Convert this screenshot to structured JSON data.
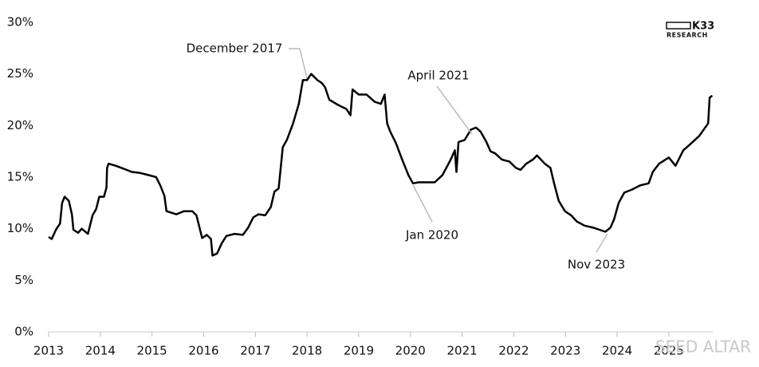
{
  "chart_data": {
    "type": "line",
    "color": "#000000",
    "x": [
      2013.0,
      2013.06,
      2013.14,
      2013.22,
      2013.26,
      2013.31,
      2013.39,
      2013.45,
      2013.48,
      2013.57,
      2013.64,
      2013.76,
      2013.85,
      2013.92,
      2013.98,
      2014.07,
      2014.12,
      2014.13,
      2014.16,
      2014.3,
      2014.46,
      2014.61,
      2014.77,
      2014.93,
      2015.08,
      2015.16,
      2015.24,
      2015.28,
      2015.47,
      2015.62,
      2015.78,
      2015.86,
      2015.97,
      2016.06,
      2016.14,
      2016.17,
      2016.26,
      2016.35,
      2016.44,
      2016.6,
      2016.76,
      2016.86,
      2016.96,
      2017.06,
      2017.19,
      2017.3,
      2017.37,
      2017.45,
      2017.53,
      2017.61,
      2017.73,
      2017.84,
      2017.92,
      2018.0,
      2018.08,
      2018.2,
      2018.29,
      2018.35,
      2018.43,
      2018.6,
      2018.76,
      2018.84,
      2018.88,
      2019.0,
      2019.15,
      2019.31,
      2019.43,
      2019.5,
      2019.55,
      2019.61,
      2019.72,
      2019.84,
      2019.96,
      2020.05,
      2020.16,
      2020.31,
      2020.47,
      2020.62,
      2020.78,
      2020.86,
      2020.89,
      2020.93,
      2021.05,
      2021.17,
      2021.27,
      2021.36,
      2021.47,
      2021.55,
      2021.64,
      2021.77,
      2021.92,
      2022.04,
      2022.13,
      2022.24,
      2022.37,
      2022.45,
      2022.6,
      2022.71,
      2022.78,
      2022.87,
      2022.99,
      2023.11,
      2023.22,
      2023.37,
      2023.54,
      2023.66,
      2023.77,
      2023.87,
      2023.94,
      2024.03,
      2024.14,
      2024.29,
      2024.45,
      2024.61,
      2024.69,
      2024.81,
      2025.0,
      2025.13,
      2025.28,
      2025.44,
      2025.59,
      2025.76,
      2025.79,
      2025.84
    ],
    "values": [
      9.2,
      9.0,
      9.9,
      10.5,
      12.5,
      13.1,
      12.7,
      11.4,
      9.9,
      9.6,
      10.0,
      9.5,
      11.3,
      11.9,
      13.1,
      13.1,
      14.0,
      15.9,
      16.3,
      16.1,
      15.8,
      15.5,
      15.4,
      15.2,
      15.0,
      14.2,
      13.2,
      11.7,
      11.4,
      11.7,
      11.7,
      11.3,
      9.1,
      9.4,
      9.0,
      7.4,
      7.6,
      8.6,
      9.3,
      9.5,
      9.4,
      10.1,
      11.1,
      11.4,
      11.3,
      12.1,
      13.6,
      13.9,
      17.9,
      18.6,
      20.2,
      22.1,
      24.4,
      24.4,
      25.0,
      24.4,
      24.1,
      23.7,
      22.5,
      22.0,
      21.6,
      21.0,
      23.5,
      23.0,
      23.0,
      22.3,
      22.1,
      23.0,
      20.2,
      19.4,
      18.3,
      16.7,
      15.2,
      14.4,
      14.5,
      14.5,
      14.5,
      15.2,
      16.7,
      17.6,
      15.5,
      18.4,
      18.6,
      19.6,
      19.8,
      19.4,
      18.4,
      17.5,
      17.3,
      16.7,
      16.5,
      15.9,
      15.7,
      16.3,
      16.7,
      17.1,
      16.3,
      15.9,
      14.4,
      12.7,
      11.7,
      11.3,
      10.7,
      10.3,
      10.1,
      9.9,
      9.7,
      10.1,
      10.9,
      12.5,
      13.5,
      13.8,
      14.2,
      14.4,
      15.5,
      16.3,
      16.9,
      16.1,
      17.6,
      18.3,
      19.0,
      20.2,
      22.7,
      22.9
    ],
    "xlim": [
      2013,
      2025.85
    ],
    "xticks": [
      2013,
      2014,
      2015,
      2016,
      2017,
      2018,
      2019,
      2020,
      2021,
      2022,
      2023,
      2024,
      2025
    ],
    "ylim": [
      0,
      30
    ],
    "yticks": [
      {
        "value": 0,
        "label": "0%"
      },
      {
        "value": 5,
        "label": "5%"
      },
      {
        "value": 10,
        "label": "10%"
      },
      {
        "value": 15,
        "label": "15%"
      },
      {
        "value": 20,
        "label": "20%"
      },
      {
        "value": 25,
        "label": "25%"
      },
      {
        "value": 30,
        "label": "30%"
      }
    ],
    "annotations": [
      "December 2017",
      "April 2021",
      "Jan 2020",
      "Nov 2023"
    ],
    "logo": {
      "name": "K33",
      "subtitle": "RESEARCH"
    },
    "watermark": "SEED ALTAR"
  }
}
